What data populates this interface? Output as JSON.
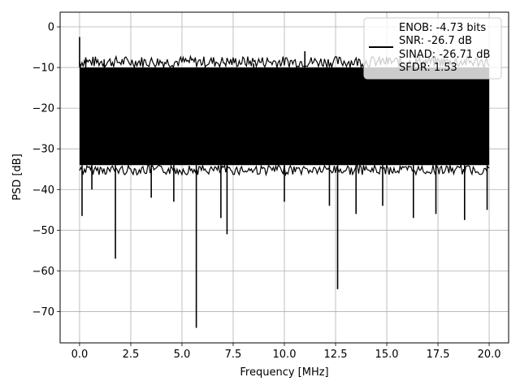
{
  "chart_data": {
    "type": "line",
    "title": "",
    "xlabel": "Frequency [MHz]",
    "ylabel": "PSD [dB]",
    "xlim": [
      -0.95,
      20.95
    ],
    "ylim": [
      -77.7,
      3.6
    ],
    "xticks": [
      0.0,
      2.5,
      5.0,
      7.5,
      10.0,
      12.5,
      15.0,
      17.5,
      20.0
    ],
    "xtick_labels": [
      "0.0",
      "2.5",
      "5.0",
      "7.5",
      "10.0",
      "12.5",
      "15.0",
      "17.5",
      "20.0"
    ],
    "yticks": [
      0,
      -10,
      -20,
      -30,
      -40,
      -50,
      -60,
      -70
    ],
    "ytick_labels": [
      "0",
      "−10",
      "−20",
      "−30",
      "−40",
      "−50",
      "−60",
      "−70"
    ],
    "grid": true,
    "legend_position": "top-right",
    "series": [
      {
        "color": "#000000",
        "noise_band": {
          "x_start": 0.0,
          "x_end": 20.0,
          "upper_db": -10,
          "lower_db": -34
        },
        "x": [
          0.0,
          0.05,
          0.12,
          0.3,
          0.6,
          1.2,
          1.75,
          2.4,
          3.5,
          4.6,
          5.7,
          6.9,
          7.2,
          8.5,
          10.0,
          11.0,
          12.2,
          12.6,
          13.5,
          14.8,
          16.3,
          17.4,
          18.8,
          19.9,
          20.0
        ],
        "y": [
          -2.5,
          -22.0,
          -46.5,
          -7.5,
          -40.0,
          -8.0,
          -57.0,
          -10.0,
          -42.0,
          -43.0,
          -74.0,
          -47.0,
          -51.0,
          -9.0,
          -43.0,
          -6.0,
          -44.0,
          -64.5,
          -46.0,
          -44.0,
          -47.0,
          -46.0,
          -47.5,
          -45.0,
          -20.0
        ]
      }
    ],
    "legend": [
      "ENOB: -4.73 bits",
      "SNR: -26.7 dB",
      "SINAD: -26.71 dB",
      "SFDR: 1.53"
    ],
    "legend_color": "#000000"
  }
}
